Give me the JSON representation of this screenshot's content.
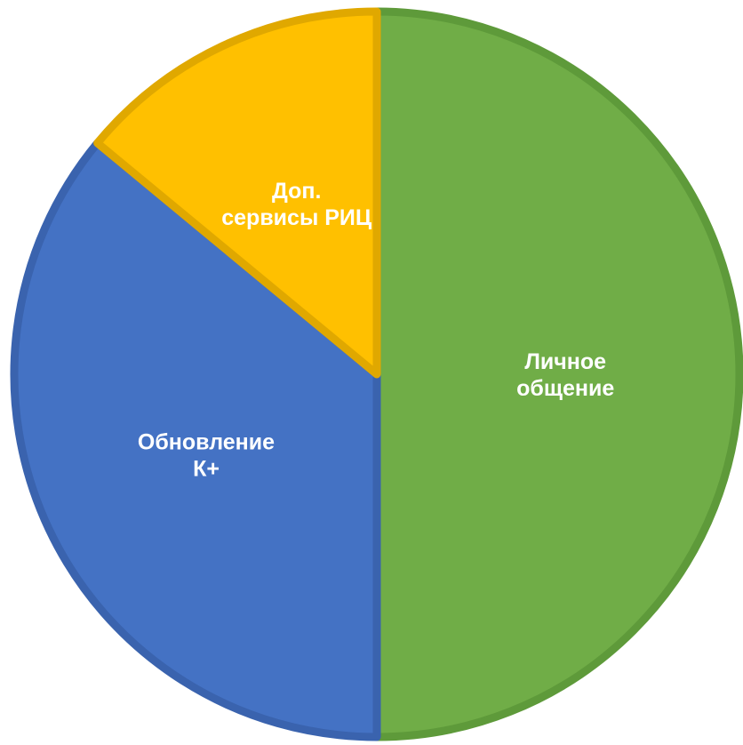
{
  "chart_data": {
    "type": "pie",
    "title": "",
    "start_angle_deg": 0,
    "direction": "clockwise",
    "slices": [
      {
        "label_lines": [
          "Личное",
          "общение"
        ],
        "value": 50,
        "color": "#70AD47",
        "border_color": "#5E9A3A"
      },
      {
        "label_lines": [
          "Обновление",
          "К+"
        ],
        "value": 36,
        "color": "#4472C4",
        "border_color": "#3A63AE"
      },
      {
        "label_lines": [
          "Доп.",
          "сервисы РИЦ"
        ],
        "value": 14,
        "color": "#FFC000",
        "border_color": "#E0A800"
      }
    ]
  }
}
